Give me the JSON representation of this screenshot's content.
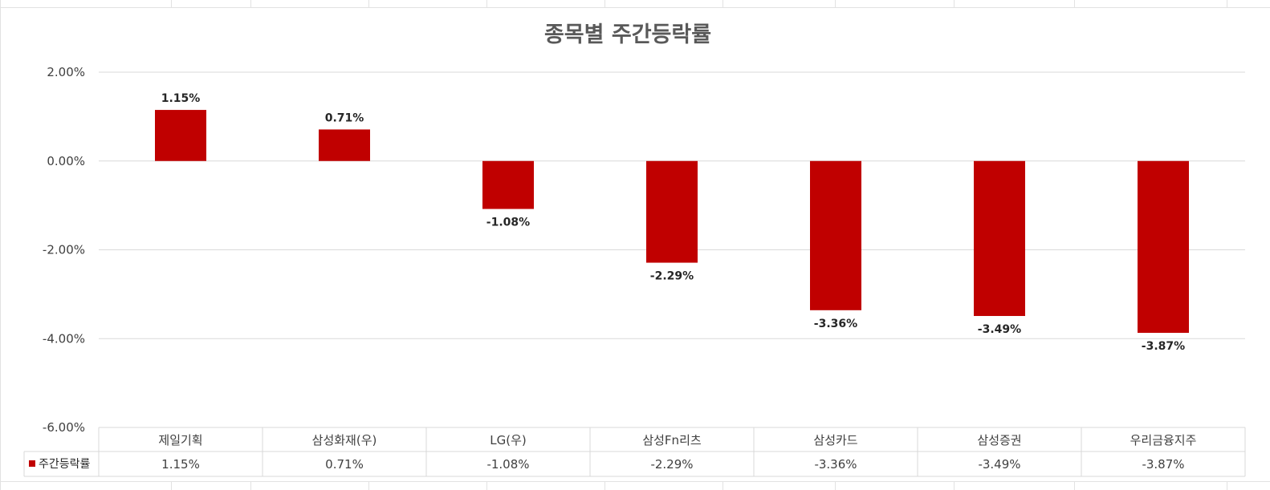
{
  "chart_data": {
    "type": "bar",
    "title": "종목별 주간등락률",
    "categories": [
      "제일기획",
      "삼성화재(우)",
      "LG(우)",
      "삼성Fn리츠",
      "삼성카드",
      "삼성증권",
      "우리금융지주"
    ],
    "series": [
      {
        "name": "주간등락률",
        "values": [
          1.15,
          0.71,
          -1.08,
          -2.29,
          -3.36,
          -3.49,
          -3.87
        ],
        "value_labels": [
          "1.15%",
          "0.71%",
          "-1.08%",
          "-2.29%",
          "-3.36%",
          "-3.49%",
          "-3.87%"
        ],
        "color": "#c00000"
      }
    ],
    "y_ticks": [
      2,
      0,
      -2,
      -4,
      -6
    ],
    "y_tick_labels": [
      "2.00%",
      "0.00%",
      "-2.00%",
      "-4.00%",
      "-6.00%"
    ],
    "ylim": [
      -6,
      2
    ],
    "grid": true,
    "legend": "data-table",
    "colors": {
      "bar": "#c00000",
      "grid": "#d9d9d9",
      "text": "#404040",
      "title": "#595959"
    }
  }
}
